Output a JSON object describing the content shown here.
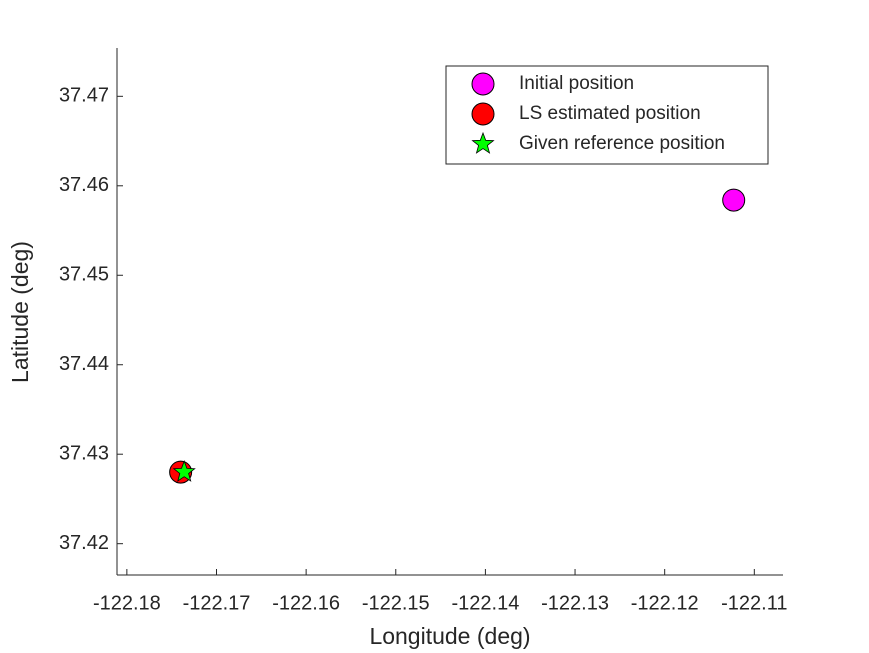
{
  "chart_data": {
    "type": "scatter",
    "xlabel": "Longitude (deg)",
    "ylabel": "Latitude (deg)",
    "xlim": [
      -122.1811,
      -122.1068
    ],
    "xticks": [
      -122.18,
      -122.17,
      -122.16,
      -122.15,
      -122.14,
      -122.13,
      -122.12,
      -122.11
    ],
    "ylim": [
      37.4165,
      37.4754
    ],
    "yticks": [
      37.42,
      37.43,
      37.44,
      37.45,
      37.46,
      37.47
    ],
    "legend": "top-right",
    "series": [
      {
        "name": "Initial position",
        "color": "#ff00ff",
        "marker": "circle",
        "x": [
          -122.1123
        ],
        "values": [
          37.4584
        ]
      },
      {
        "name": "LS estimated position",
        "color": "#ff0000",
        "marker": "circle",
        "x": [
          -122.174
        ],
        "values": [
          37.428
        ]
      },
      {
        "name": "Given reference position",
        "color": "#00ff00",
        "marker": "star",
        "x": [
          -122.1736
        ],
        "values": [
          37.428
        ]
      }
    ]
  }
}
